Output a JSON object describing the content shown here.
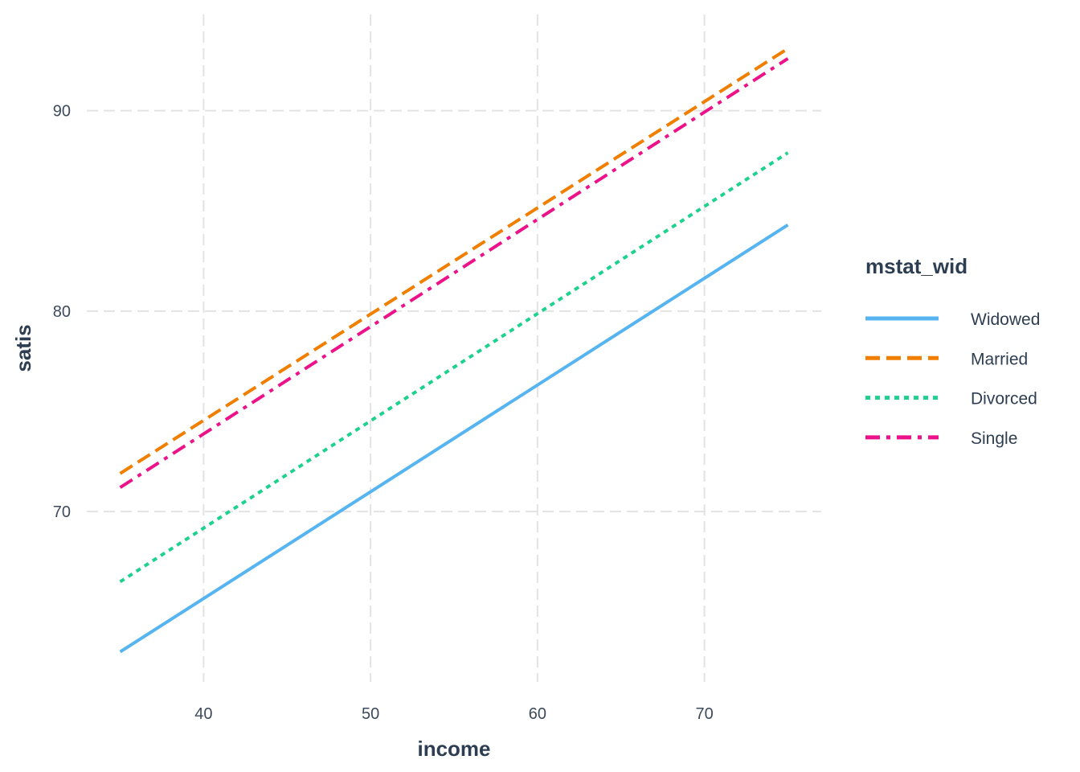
{
  "chart_data": {
    "type": "line",
    "xlabel": "income",
    "ylabel": "satis",
    "xlim": [
      33,
      77
    ],
    "ylim": [
      61.5,
      94.8
    ],
    "x_ticks": [
      40,
      50,
      60,
      70
    ],
    "y_ticks": [
      70,
      80,
      90
    ],
    "x_tick_labels": [
      "40",
      "50",
      "60",
      "70"
    ],
    "y_tick_labels": [
      "70",
      "80",
      "90"
    ],
    "grid": true,
    "legend": {
      "title": "mstat_wid",
      "placement": "right"
    },
    "series": [
      {
        "name": "Widowed",
        "color": "#56b4f0",
        "linestyle": "solid",
        "x": [
          35,
          75
        ],
        "y": [
          63.0,
          84.3
        ]
      },
      {
        "name": "Married",
        "color": "#f07f00",
        "linestyle": "dashed",
        "x": [
          35,
          75
        ],
        "y": [
          71.9,
          93.1
        ]
      },
      {
        "name": "Divorced",
        "color": "#1fd18e",
        "linestyle": "dotted",
        "x": [
          35,
          75
        ],
        "y": [
          66.5,
          87.9
        ]
      },
      {
        "name": "Single",
        "color": "#ec1289",
        "linestyle": "dashdot",
        "x": [
          35,
          75
        ],
        "y": [
          71.2,
          92.6
        ]
      }
    ]
  }
}
